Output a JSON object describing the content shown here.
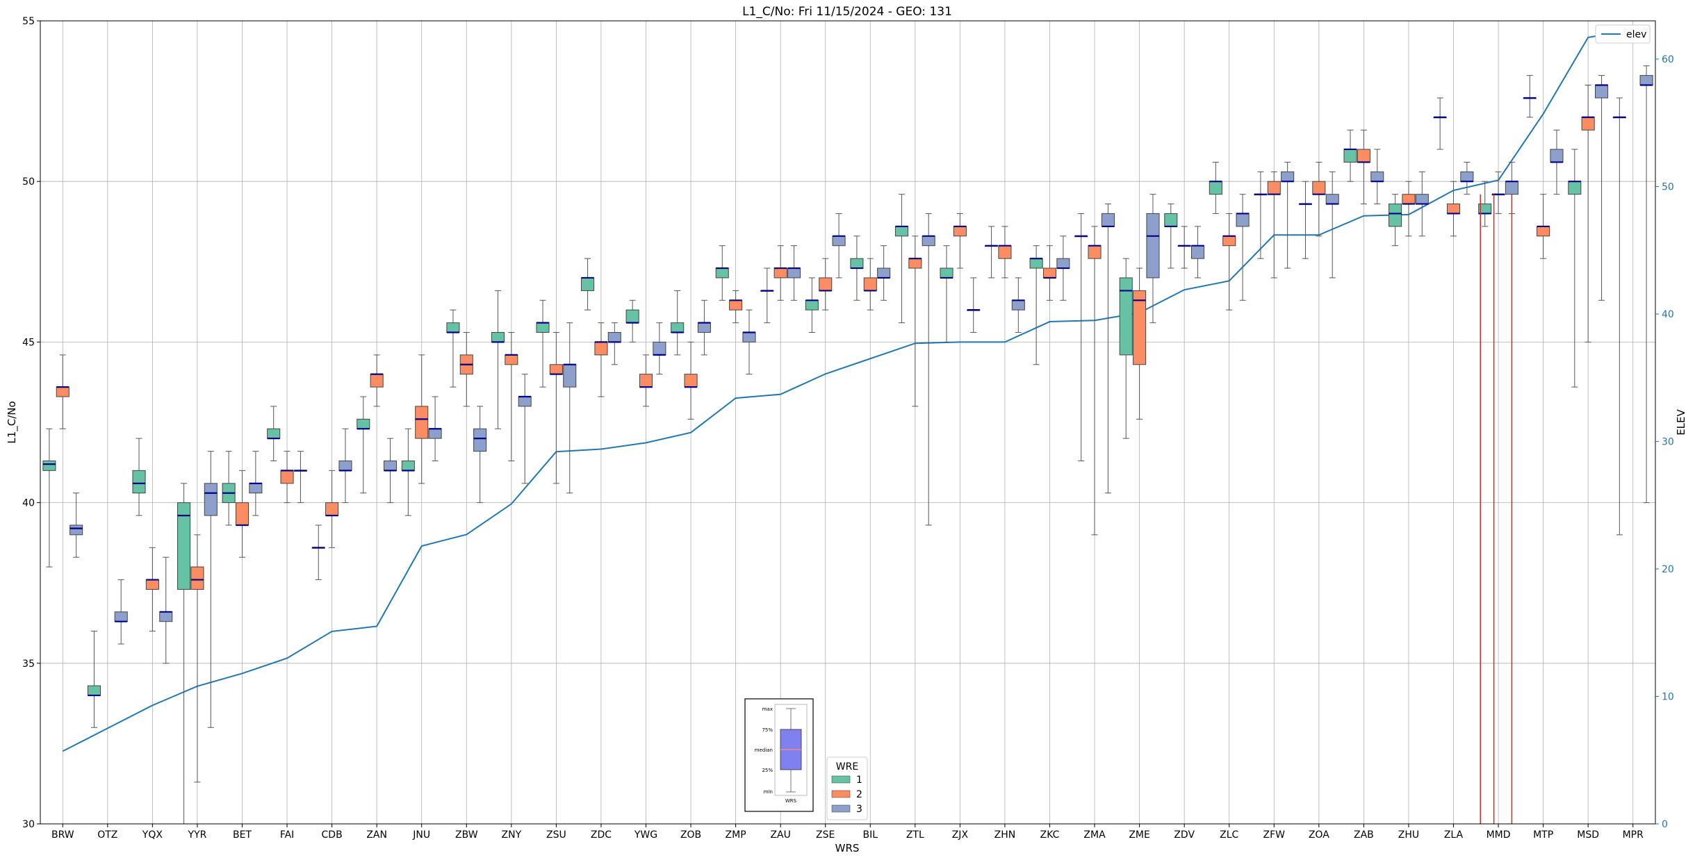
{
  "chart_data": {
    "type": "box",
    "title": "L1_C/No: Fri 11/15/2024 - GEO: 131",
    "xlabel": "WRS",
    "ylabel": "L1_C/No",
    "ylabel_right": "ELEV",
    "ylim": [
      30,
      55
    ],
    "ylim_right": [
      0,
      63
    ],
    "yticks": [
      30,
      35,
      40,
      45,
      50,
      55
    ],
    "yticks_right": [
      0,
      10,
      20,
      30,
      40,
      50,
      60
    ],
    "grid": true,
    "categories": [
      "BRW",
      "OTZ",
      "YQX",
      "YYR",
      "BET",
      "FAI",
      "CDB",
      "ZAN",
      "JNU",
      "ZBW",
      "ZNY",
      "ZSU",
      "ZDC",
      "YWG",
      "ZOB",
      "ZMP",
      "ZAU",
      "ZSE",
      "BIL",
      "ZTL",
      "ZJX",
      "ZHN",
      "ZKC",
      "ZMA",
      "ZME",
      "ZDV",
      "ZLC",
      "ZFW",
      "ZOA",
      "ZAB",
      "ZHU",
      "ZLA",
      "MMD",
      "MTP",
      "MSD",
      "MPR"
    ],
    "colors": {
      "1": "#66c2a5",
      "2": "#fc8d62",
      "3": "#8da0cb",
      "elev": "#1f77b4",
      "median": "#00008b",
      "marker": "#d62728"
    },
    "legend_elev": {
      "label": "elev",
      "placement": "top-right"
    },
    "legend_wre": {
      "title": "WRE",
      "items": [
        "1",
        "2",
        "3"
      ],
      "placement": "bottom-center"
    },
    "inset_key": {
      "labels": [
        "max",
        "75%",
        "median",
        "25%",
        "min"
      ],
      "xlabel": "WRS"
    },
    "elev": [
      5.7,
      7.5,
      9.3,
      10.8,
      11.8,
      13.0,
      15.1,
      15.5,
      21.8,
      22.7,
      25.1,
      29.2,
      29.4,
      29.9,
      30.7,
      33.4,
      33.7,
      35.3,
      36.5,
      37.7,
      37.8,
      37.8,
      39.4,
      39.5,
      40.1,
      41.9,
      42.6,
      46.2,
      46.2,
      47.7,
      47.8,
      49.7,
      50.5,
      55.7,
      61.7,
      62.3
    ],
    "red_markers_x": [
      31.6,
      31.9,
      32.3
    ],
    "boxes": [
      {
        "cat": "BRW",
        "wre": "1",
        "min": 38.0,
        "q1": 41.0,
        "med": 41.2,
        "q3": 41.3,
        "max": 42.3
      },
      {
        "cat": "BRW",
        "wre": "2",
        "min": 42.3,
        "q1": 43.3,
        "med": 43.6,
        "q3": 43.6,
        "max": 44.6
      },
      {
        "cat": "BRW",
        "wre": "3",
        "min": 38.3,
        "q1": 39.0,
        "med": 39.2,
        "q3": 39.3,
        "max": 40.3
      },
      {
        "cat": "OTZ",
        "wre": "1",
        "min": 33.0,
        "q1": 34.0,
        "med": 34.0,
        "q3": 34.3,
        "max": 36.0
      },
      {
        "cat": "OTZ",
        "wre": "3",
        "min": 35.6,
        "q1": 36.3,
        "med": 36.3,
        "q3": 36.6,
        "max": 37.6
      },
      {
        "cat": "YQX",
        "wre": "1",
        "min": 39.6,
        "q1": 40.3,
        "med": 40.6,
        "q3": 41.0,
        "max": 42.0
      },
      {
        "cat": "YQX",
        "wre": "2",
        "min": 36.0,
        "q1": 37.3,
        "med": 37.6,
        "q3": 37.6,
        "max": 38.6
      },
      {
        "cat": "YQX",
        "wre": "3",
        "min": 35.0,
        "q1": 36.3,
        "med": 36.6,
        "q3": 36.6,
        "max": 38.3
      },
      {
        "cat": "YYR",
        "wre": "1",
        "min": 30.0,
        "q1": 37.3,
        "med": 39.6,
        "q3": 40.0,
        "max": 40.6
      },
      {
        "cat": "YYR",
        "wre": "2",
        "min": 31.3,
        "q1": 37.3,
        "med": 37.6,
        "q3": 38.0,
        "max": 39.0
      },
      {
        "cat": "YYR",
        "wre": "3",
        "min": 33.0,
        "q1": 39.6,
        "med": 40.3,
        "q3": 40.6,
        "max": 41.6
      },
      {
        "cat": "BET",
        "wre": "1",
        "min": 39.3,
        "q1": 40.0,
        "med": 40.3,
        "q3": 40.6,
        "max": 41.6
      },
      {
        "cat": "BET",
        "wre": "2",
        "min": 38.3,
        "q1": 39.3,
        "med": 39.3,
        "q3": 40.0,
        "max": 41.0
      },
      {
        "cat": "BET",
        "wre": "3",
        "min": 39.6,
        "q1": 40.3,
        "med": 40.6,
        "q3": 40.6,
        "max": 41.6
      },
      {
        "cat": "FAI",
        "wre": "1",
        "min": 41.3,
        "q1": 42.0,
        "med": 42.0,
        "q3": 42.3,
        "max": 43.0
      },
      {
        "cat": "FAI",
        "wre": "2",
        "min": 40.0,
        "q1": 40.6,
        "med": 41.0,
        "q3": 41.0,
        "max": 41.6
      },
      {
        "cat": "FAI",
        "wre": "3",
        "min": 40.0,
        "q1": 41.0,
        "med": 41.0,
        "q3": 41.0,
        "max": 41.6
      },
      {
        "cat": "CDB",
        "wre": "1",
        "min": 37.6,
        "q1": 38.6,
        "med": 38.6,
        "q3": 38.6,
        "max": 39.3
      },
      {
        "cat": "CDB",
        "wre": "2",
        "min": 38.6,
        "q1": 39.6,
        "med": 39.6,
        "q3": 40.0,
        "max": 41.0
      },
      {
        "cat": "CDB",
        "wre": "3",
        "min": 40.0,
        "q1": 41.0,
        "med": 41.0,
        "q3": 41.3,
        "max": 42.3
      },
      {
        "cat": "ZAN",
        "wre": "1",
        "min": 40.3,
        "q1": 42.3,
        "med": 42.3,
        "q3": 42.6,
        "max": 43.3
      },
      {
        "cat": "ZAN",
        "wre": "2",
        "min": 43.0,
        "q1": 43.6,
        "med": 44.0,
        "q3": 44.0,
        "max": 44.6
      },
      {
        "cat": "ZAN",
        "wre": "3",
        "min": 40.0,
        "q1": 41.0,
        "med": 41.0,
        "q3": 41.3,
        "max": 42.0
      },
      {
        "cat": "JNU",
        "wre": "1",
        "min": 39.6,
        "q1": 41.0,
        "med": 41.0,
        "q3": 41.3,
        "max": 42.3
      },
      {
        "cat": "JNU",
        "wre": "2",
        "min": 40.6,
        "q1": 42.0,
        "med": 42.6,
        "q3": 43.0,
        "max": 44.6
      },
      {
        "cat": "JNU",
        "wre": "3",
        "min": 41.3,
        "q1": 42.0,
        "med": 42.3,
        "q3": 42.3,
        "max": 43.3
      },
      {
        "cat": "ZBW",
        "wre": "1",
        "min": 43.6,
        "q1": 45.3,
        "med": 45.3,
        "q3": 45.6,
        "max": 46.0
      },
      {
        "cat": "ZBW",
        "wre": "2",
        "min": 43.0,
        "q1": 44.0,
        "med": 44.3,
        "q3": 44.6,
        "max": 45.3
      },
      {
        "cat": "ZBW",
        "wre": "3",
        "min": 40.0,
        "q1": 41.6,
        "med": 42.0,
        "q3": 42.3,
        "max": 43.0
      },
      {
        "cat": "ZNY",
        "wre": "1",
        "min": 42.3,
        "q1": 45.0,
        "med": 45.0,
        "q3": 45.3,
        "max": 46.6
      },
      {
        "cat": "ZNY",
        "wre": "2",
        "min": 41.3,
        "q1": 44.3,
        "med": 44.6,
        "q3": 44.6,
        "max": 45.3
      },
      {
        "cat": "ZNY",
        "wre": "3",
        "min": 40.6,
        "q1": 43.0,
        "med": 43.3,
        "q3": 43.3,
        "max": 44.0
      },
      {
        "cat": "ZSU",
        "wre": "1",
        "min": 43.6,
        "q1": 45.3,
        "med": 45.6,
        "q3": 45.6,
        "max": 46.3
      },
      {
        "cat": "ZSU",
        "wre": "2",
        "min": 40.6,
        "q1": 44.0,
        "med": 44.0,
        "q3": 44.3,
        "max": 45.3
      },
      {
        "cat": "ZSU",
        "wre": "3",
        "min": 40.3,
        "q1": 43.6,
        "med": 44.3,
        "q3": 44.3,
        "max": 45.6
      },
      {
        "cat": "ZDC",
        "wre": "1",
        "min": 46.0,
        "q1": 46.6,
        "med": 47.0,
        "q3": 47.0,
        "max": 47.6
      },
      {
        "cat": "ZDC",
        "wre": "2",
        "min": 43.3,
        "q1": 44.6,
        "med": 45.0,
        "q3": 45.0,
        "max": 45.6
      },
      {
        "cat": "ZDC",
        "wre": "3",
        "min": 44.3,
        "q1": 45.0,
        "med": 45.0,
        "q3": 45.3,
        "max": 45.6
      },
      {
        "cat": "YWG",
        "wre": "1",
        "min": 45.0,
        "q1": 45.6,
        "med": 45.6,
        "q3": 46.0,
        "max": 46.3
      },
      {
        "cat": "YWG",
        "wre": "2",
        "min": 43.0,
        "q1": 43.6,
        "med": 43.6,
        "q3": 44.0,
        "max": 44.6
      },
      {
        "cat": "YWG",
        "wre": "3",
        "min": 44.0,
        "q1": 44.6,
        "med": 44.6,
        "q3": 45.0,
        "max": 45.6
      },
      {
        "cat": "ZOB",
        "wre": "1",
        "min": 44.6,
        "q1": 45.3,
        "med": 45.3,
        "q3": 45.6,
        "max": 46.6
      },
      {
        "cat": "ZOB",
        "wre": "2",
        "min": 42.6,
        "q1": 43.6,
        "med": 43.6,
        "q3": 44.0,
        "max": 45.0
      },
      {
        "cat": "ZOB",
        "wre": "3",
        "min": 44.6,
        "q1": 45.3,
        "med": 45.6,
        "q3": 45.6,
        "max": 46.3
      },
      {
        "cat": "ZMP",
        "wre": "1",
        "min": 46.3,
        "q1": 47.0,
        "med": 47.3,
        "q3": 47.3,
        "max": 48.0
      },
      {
        "cat": "ZMP",
        "wre": "2",
        "min": 45.6,
        "q1": 46.0,
        "med": 46.3,
        "q3": 46.3,
        "max": 46.6
      },
      {
        "cat": "ZMP",
        "wre": "3",
        "min": 44.0,
        "q1": 45.0,
        "med": 45.3,
        "q3": 45.3,
        "max": 46.0
      },
      {
        "cat": "ZAU",
        "wre": "1",
        "min": 45.6,
        "q1": 46.6,
        "med": 46.6,
        "q3": 46.6,
        "max": 47.3
      },
      {
        "cat": "ZAU",
        "wre": "2",
        "min": 46.3,
        "q1": 47.0,
        "med": 47.3,
        "q3": 47.3,
        "max": 48.0
      },
      {
        "cat": "ZAU",
        "wre": "3",
        "min": 46.3,
        "q1": 47.0,
        "med": 47.3,
        "q3": 47.3,
        "max": 48.0
      },
      {
        "cat": "ZSE",
        "wre": "1",
        "min": 45.3,
        "q1": 46.0,
        "med": 46.3,
        "q3": 46.3,
        "max": 47.0
      },
      {
        "cat": "ZSE",
        "wre": "2",
        "min": 46.0,
        "q1": 46.6,
        "med": 46.6,
        "q3": 47.0,
        "max": 47.6
      },
      {
        "cat": "ZSE",
        "wre": "3",
        "min": 47.0,
        "q1": 48.0,
        "med": 48.3,
        "q3": 48.3,
        "max": 49.0
      },
      {
        "cat": "BIL",
        "wre": "1",
        "min": 46.3,
        "q1": 47.3,
        "med": 47.3,
        "q3": 47.6,
        "max": 48.3
      },
      {
        "cat": "BIL",
        "wre": "2",
        "min": 46.0,
        "q1": 46.6,
        "med": 46.6,
        "q3": 47.0,
        "max": 47.6
      },
      {
        "cat": "BIL",
        "wre": "3",
        "min": 46.3,
        "q1": 47.0,
        "med": 47.0,
        "q3": 47.3,
        "max": 48.0
      },
      {
        "cat": "ZTL",
        "wre": "1",
        "min": 45.6,
        "q1": 48.3,
        "med": 48.6,
        "q3": 48.6,
        "max": 49.6
      },
      {
        "cat": "ZTL",
        "wre": "2",
        "min": 43.0,
        "q1": 47.3,
        "med": 47.6,
        "q3": 47.6,
        "max": 48.3
      },
      {
        "cat": "ZTL",
        "wre": "3",
        "min": 39.3,
        "q1": 48.0,
        "med": 48.3,
        "q3": 48.3,
        "max": 49.0
      },
      {
        "cat": "ZJX",
        "wre": "1",
        "min": 45.0,
        "q1": 47.0,
        "med": 47.0,
        "q3": 47.3,
        "max": 48.0
      },
      {
        "cat": "ZJX",
        "wre": "2",
        "min": 47.3,
        "q1": 48.3,
        "med": 48.6,
        "q3": 48.6,
        "max": 49.0
      },
      {
        "cat": "ZJX",
        "wre": "3",
        "min": 45.3,
        "q1": 46.0,
        "med": 46.0,
        "q3": 46.0,
        "max": 47.0
      },
      {
        "cat": "ZHN",
        "wre": "1",
        "min": 47.0,
        "q1": 48.0,
        "med": 48.0,
        "q3": 48.0,
        "max": 48.6
      },
      {
        "cat": "ZHN",
        "wre": "2",
        "min": 47.0,
        "q1": 47.6,
        "med": 48.0,
        "q3": 48.0,
        "max": 48.6
      },
      {
        "cat": "ZHN",
        "wre": "3",
        "min": 45.3,
        "q1": 46.0,
        "med": 46.3,
        "q3": 46.3,
        "max": 47.0
      },
      {
        "cat": "ZKC",
        "wre": "1",
        "min": 44.3,
        "q1": 47.3,
        "med": 47.6,
        "q3": 47.6,
        "max": 48.0
      },
      {
        "cat": "ZKC",
        "wre": "2",
        "min": 46.3,
        "q1": 47.0,
        "med": 47.0,
        "q3": 47.3,
        "max": 48.0
      },
      {
        "cat": "ZKC",
        "wre": "3",
        "min": 46.3,
        "q1": 47.3,
        "med": 47.3,
        "q3": 47.6,
        "max": 48.3
      },
      {
        "cat": "ZMA",
        "wre": "1",
        "min": 41.3,
        "q1": 48.3,
        "med": 48.3,
        "q3": 48.3,
        "max": 49.0
      },
      {
        "cat": "ZMA",
        "wre": "2",
        "min": 39.0,
        "q1": 47.6,
        "med": 48.0,
        "q3": 48.0,
        "max": 48.6
      },
      {
        "cat": "ZMA",
        "wre": "3",
        "min": 40.3,
        "q1": 48.6,
        "med": 48.6,
        "q3": 49.0,
        "max": 49.3
      },
      {
        "cat": "ZME",
        "wre": "1",
        "min": 42.0,
        "q1": 44.6,
        "med": 46.6,
        "q3": 47.0,
        "max": 47.6
      },
      {
        "cat": "ZME",
        "wre": "2",
        "min": 42.6,
        "q1": 44.3,
        "med": 46.3,
        "q3": 46.6,
        "max": 47.3
      },
      {
        "cat": "ZME",
        "wre": "3",
        "min": 45.6,
        "q1": 47.0,
        "med": 48.3,
        "q3": 49.0,
        "max": 49.6
      },
      {
        "cat": "ZDV",
        "wre": "1",
        "min": 47.3,
        "q1": 48.6,
        "med": 48.6,
        "q3": 49.0,
        "max": 49.3
      },
      {
        "cat": "ZDV",
        "wre": "2",
        "min": 47.3,
        "q1": 48.0,
        "med": 48.0,
        "q3": 48.0,
        "max": 48.6
      },
      {
        "cat": "ZDV",
        "wre": "3",
        "min": 47.0,
        "q1": 47.6,
        "med": 48.0,
        "q3": 48.0,
        "max": 48.6
      },
      {
        "cat": "ZLC",
        "wre": "1",
        "min": 49.0,
        "q1": 49.6,
        "med": 50.0,
        "q3": 50.0,
        "max": 50.6
      },
      {
        "cat": "ZLC",
        "wre": "2",
        "min": 46.0,
        "q1": 48.0,
        "med": 48.3,
        "q3": 48.3,
        "max": 49.0
      },
      {
        "cat": "ZLC",
        "wre": "3",
        "min": 46.3,
        "q1": 48.6,
        "med": 49.0,
        "q3": 49.0,
        "max": 49.6
      },
      {
        "cat": "ZFW",
        "wre": "1",
        "min": 47.6,
        "q1": 49.6,
        "med": 49.6,
        "q3": 49.6,
        "max": 50.3
      },
      {
        "cat": "ZFW",
        "wre": "2",
        "min": 47.0,
        "q1": 49.6,
        "med": 49.6,
        "q3": 50.0,
        "max": 50.3
      },
      {
        "cat": "ZFW",
        "wre": "3",
        "min": 47.3,
        "q1": 50.0,
        "med": 50.0,
        "q3": 50.3,
        "max": 50.6
      },
      {
        "cat": "ZOA",
        "wre": "1",
        "min": 47.6,
        "q1": 49.3,
        "med": 49.3,
        "q3": 49.3,
        "max": 50.0
      },
      {
        "cat": "ZOA",
        "wre": "2",
        "min": 48.3,
        "q1": 49.6,
        "med": 49.6,
        "q3": 50.0,
        "max": 50.6
      },
      {
        "cat": "ZOA",
        "wre": "3",
        "min": 47.0,
        "q1": 49.3,
        "med": 49.3,
        "q3": 49.6,
        "max": 50.3
      },
      {
        "cat": "ZAB",
        "wre": "1",
        "min": 50.0,
        "q1": 50.6,
        "med": 51.0,
        "q3": 51.0,
        "max": 51.6
      },
      {
        "cat": "ZAB",
        "wre": "2",
        "min": 49.3,
        "q1": 50.6,
        "med": 50.6,
        "q3": 51.0,
        "max": 51.6
      },
      {
        "cat": "ZAB",
        "wre": "3",
        "min": 49.3,
        "q1": 50.0,
        "med": 50.0,
        "q3": 50.3,
        "max": 51.0
      },
      {
        "cat": "ZHU",
        "wre": "1",
        "min": 48.0,
        "q1": 48.6,
        "med": 49.0,
        "q3": 49.3,
        "max": 49.6
      },
      {
        "cat": "ZHU",
        "wre": "2",
        "min": 48.3,
        "q1": 49.3,
        "med": 49.3,
        "q3": 49.6,
        "max": 50.0
      },
      {
        "cat": "ZHU",
        "wre": "3",
        "min": 48.3,
        "q1": 49.3,
        "med": 49.3,
        "q3": 49.6,
        "max": 50.3
      },
      {
        "cat": "ZLA",
        "wre": "1",
        "min": 51.0,
        "q1": 52.0,
        "med": 52.0,
        "q3": 52.0,
        "max": 52.6
      },
      {
        "cat": "ZLA",
        "wre": "2",
        "min": 48.3,
        "q1": 49.0,
        "med": 49.0,
        "q3": 49.3,
        "max": 50.0
      },
      {
        "cat": "ZLA",
        "wre": "3",
        "min": 49.6,
        "q1": 50.0,
        "med": 50.0,
        "q3": 50.3,
        "max": 50.6
      },
      {
        "cat": "MMD",
        "wre": "1",
        "min": 48.6,
        "q1": 49.0,
        "med": 49.0,
        "q3": 49.3,
        "max": 50.0
      },
      {
        "cat": "MMD",
        "wre": "2",
        "min": 49.0,
        "q1": 49.6,
        "med": 49.6,
        "q3": 49.6,
        "max": 50.3
      },
      {
        "cat": "MMD",
        "wre": "3",
        "min": 49.0,
        "q1": 49.6,
        "med": 50.0,
        "q3": 50.0,
        "max": 50.6
      },
      {
        "cat": "MTP",
        "wre": "1",
        "min": 52.0,
        "q1": 52.6,
        "med": 52.6,
        "q3": 52.6,
        "max": 53.3
      },
      {
        "cat": "MTP",
        "wre": "2",
        "min": 47.6,
        "q1": 48.3,
        "med": 48.6,
        "q3": 48.6,
        "max": 49.6
      },
      {
        "cat": "MTP",
        "wre": "3",
        "min": 49.6,
        "q1": 50.6,
        "med": 50.6,
        "q3": 51.0,
        "max": 51.6
      },
      {
        "cat": "MSD",
        "wre": "1",
        "min": 43.6,
        "q1": 49.6,
        "med": 50.0,
        "q3": 50.0,
        "max": 51.0
      },
      {
        "cat": "MSD",
        "wre": "2",
        "min": 45.0,
        "q1": 51.6,
        "med": 52.0,
        "q3": 52.0,
        "max": 53.0
      },
      {
        "cat": "MSD",
        "wre": "3",
        "min": 46.3,
        "q1": 52.6,
        "med": 53.0,
        "q3": 53.0,
        "max": 53.3
      },
      {
        "cat": "MPR",
        "wre": "1",
        "min": 39.0,
        "q1": 52.0,
        "med": 52.0,
        "q3": 52.0,
        "max": 52.6
      },
      {
        "cat": "MPR",
        "wre": "3",
        "min": 40.0,
        "q1": 53.0,
        "med": 53.0,
        "q3": 53.3,
        "max": 53.6
      }
    ]
  }
}
